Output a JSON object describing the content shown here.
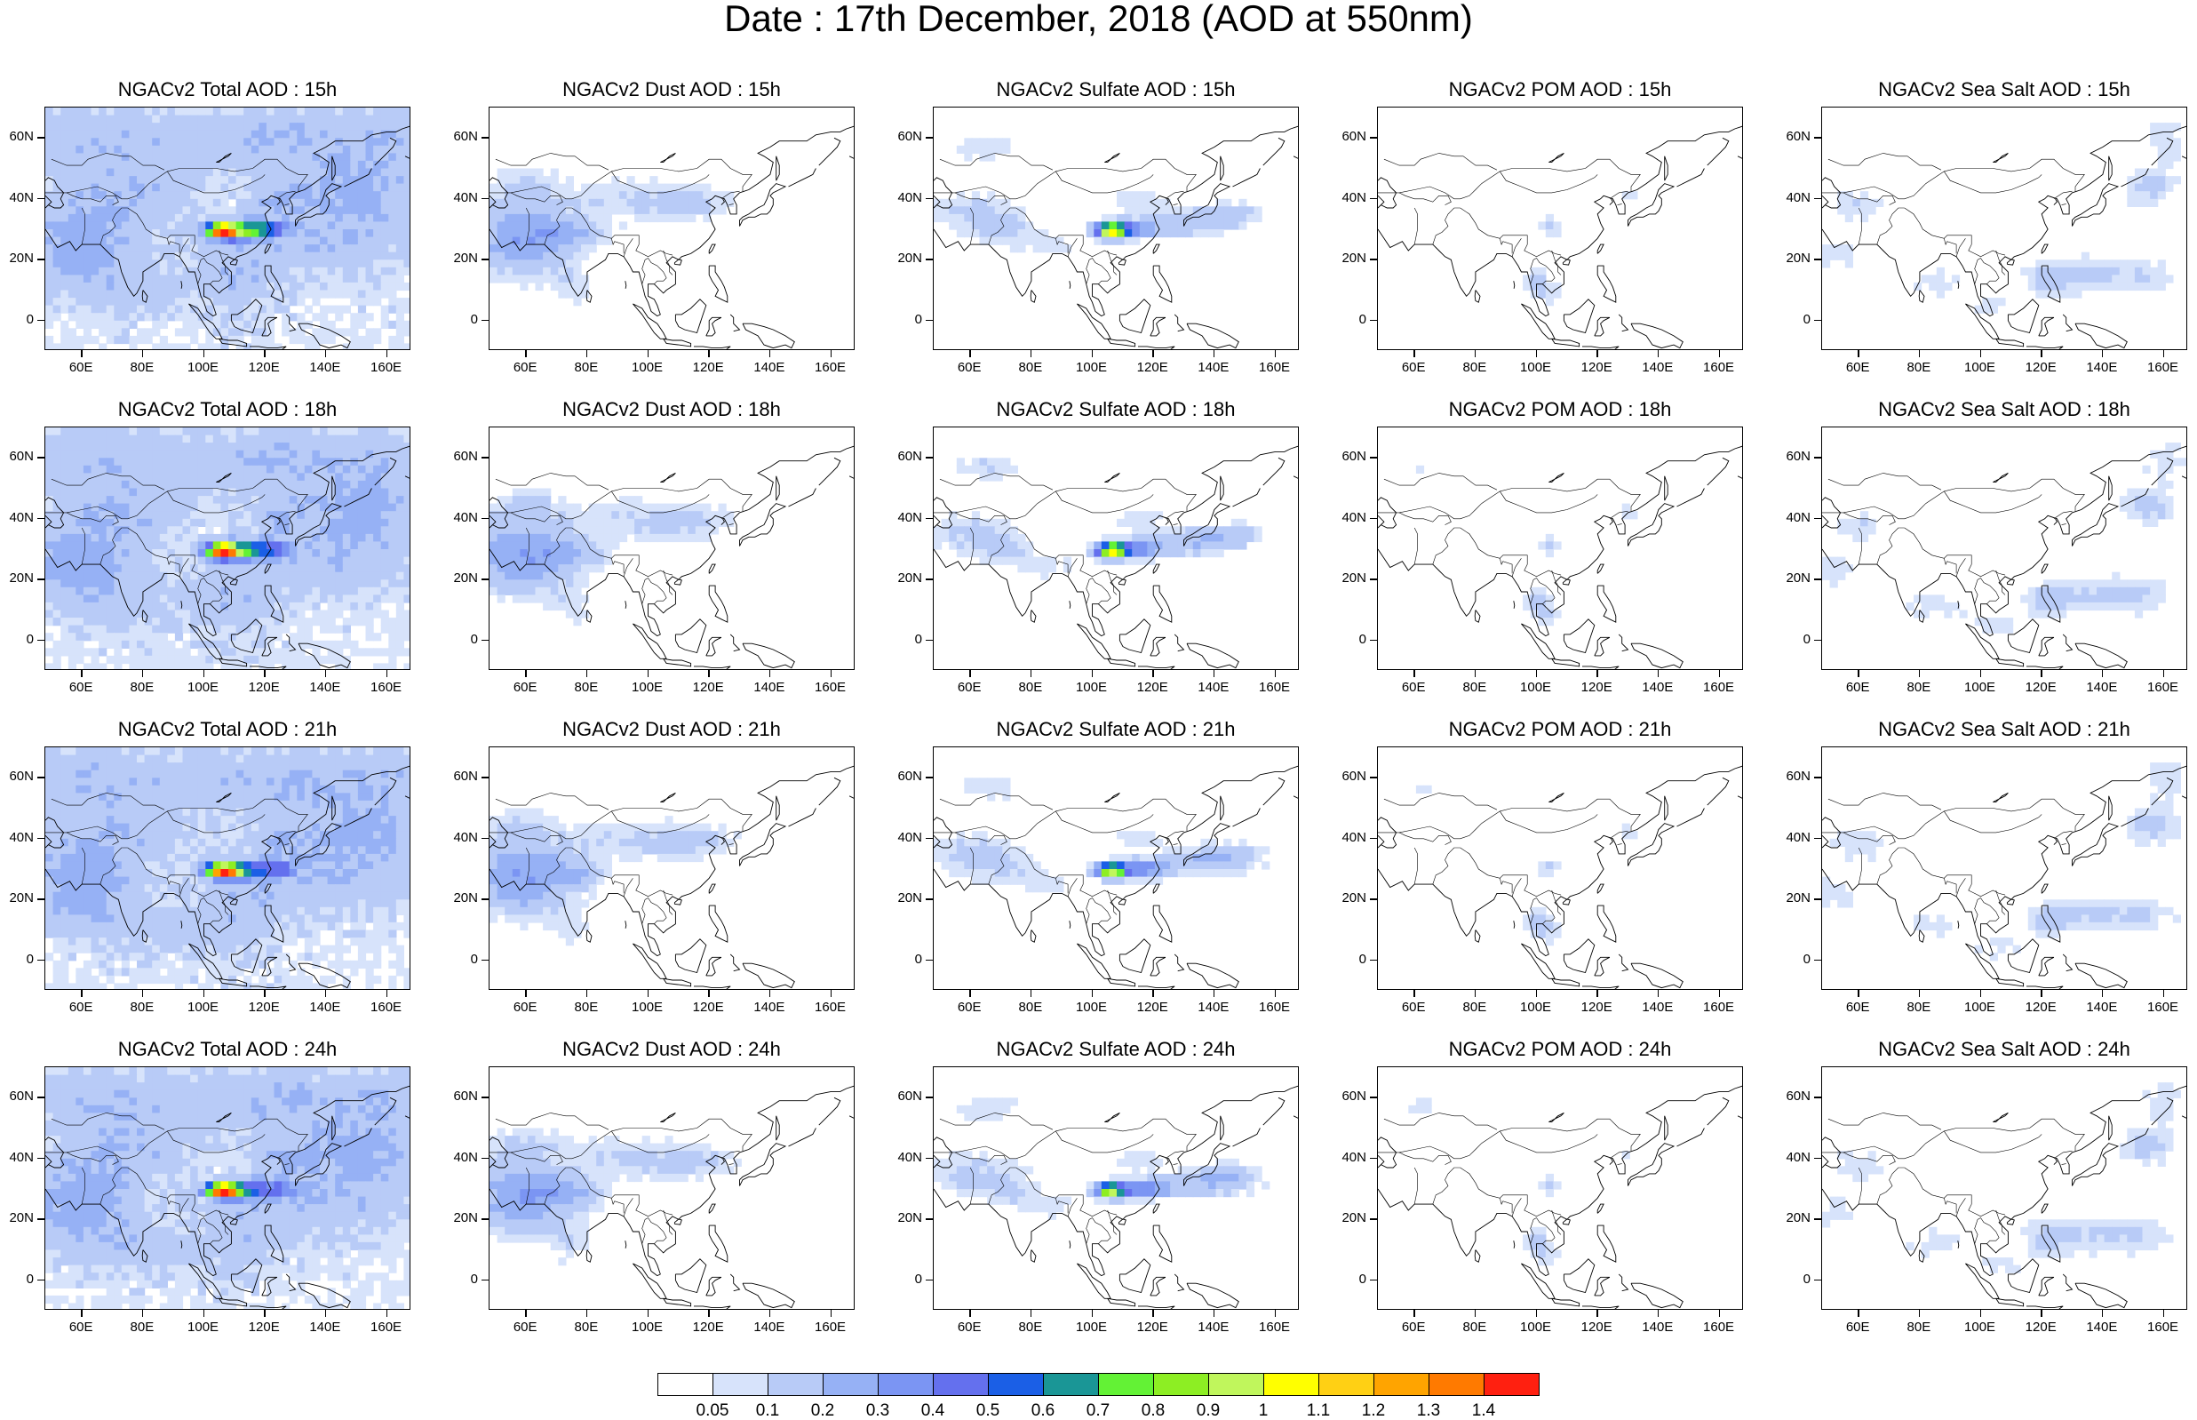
{
  "figure": {
    "title": "Date : 17th December, 2018 (AOD at 550nm)"
  },
  "axes": {
    "y_ticks": [
      "60N",
      "40N",
      "20N",
      "0"
    ],
    "x_ticks": [
      "60E",
      "80E",
      "100E",
      "120E",
      "140E",
      "160E"
    ],
    "lon_range": [
      48,
      168
    ],
    "lat_range": [
      -10,
      70
    ]
  },
  "panels": [
    {
      "title": "NGACv2 Total AOD : 15h",
      "species": "total"
    },
    {
      "title": "NGACv2 Dust AOD : 15h",
      "species": "dust"
    },
    {
      "title": "NGACv2 Sulfate AOD : 15h",
      "species": "sulfate"
    },
    {
      "title": "NGACv2 POM AOD : 15h",
      "species": "pom"
    },
    {
      "title": "NGACv2 Sea Salt AOD : 15h",
      "species": "seasalt"
    },
    {
      "title": "NGACv2 Total AOD : 18h",
      "species": "total"
    },
    {
      "title": "NGACv2 Dust AOD : 18h",
      "species": "dust"
    },
    {
      "title": "NGACv2 Sulfate AOD : 18h",
      "species": "sulfate"
    },
    {
      "title": "NGACv2 POM AOD : 18h",
      "species": "pom"
    },
    {
      "title": "NGACv2 Sea Salt AOD : 18h",
      "species": "seasalt"
    },
    {
      "title": "NGACv2 Total AOD : 21h",
      "species": "total"
    },
    {
      "title": "NGACv2 Dust AOD : 21h",
      "species": "dust"
    },
    {
      "title": "NGACv2 Sulfate AOD : 21h",
      "species": "sulfate"
    },
    {
      "title": "NGACv2 POM AOD : 21h",
      "species": "pom"
    },
    {
      "title": "NGACv2 Sea Salt AOD : 21h",
      "species": "seasalt"
    },
    {
      "title": "NGACv2 Total AOD : 24h",
      "species": "total"
    },
    {
      "title": "NGACv2 Dust AOD : 24h",
      "species": "dust"
    },
    {
      "title": "NGACv2 Sulfate AOD : 24h",
      "species": "sulfate"
    },
    {
      "title": "NGACv2 POM AOD : 24h",
      "species": "pom"
    },
    {
      "title": "NGACv2 Sea Salt  AOD : 24h",
      "species": "seasalt"
    }
  ],
  "colorbar": {
    "labels": [
      "0.05",
      "0.1",
      "0.2",
      "0.3",
      "0.4",
      "0.5",
      "0.6",
      "0.7",
      "0.8",
      "0.9",
      "1",
      "1.1",
      "1.2",
      "1.3",
      "1.4"
    ],
    "colors": [
      "#ffffff",
      "#d7e3fb",
      "#b8cbf7",
      "#96b1f5",
      "#7b95f3",
      "#6470ee",
      "#1b5fe6",
      "#1a9696",
      "#63f235",
      "#8dee23",
      "#c0f65c",
      "#ffff00",
      "#ffd014",
      "#ffa400",
      "#ff7a00",
      "#ff2010"
    ]
  }
}
